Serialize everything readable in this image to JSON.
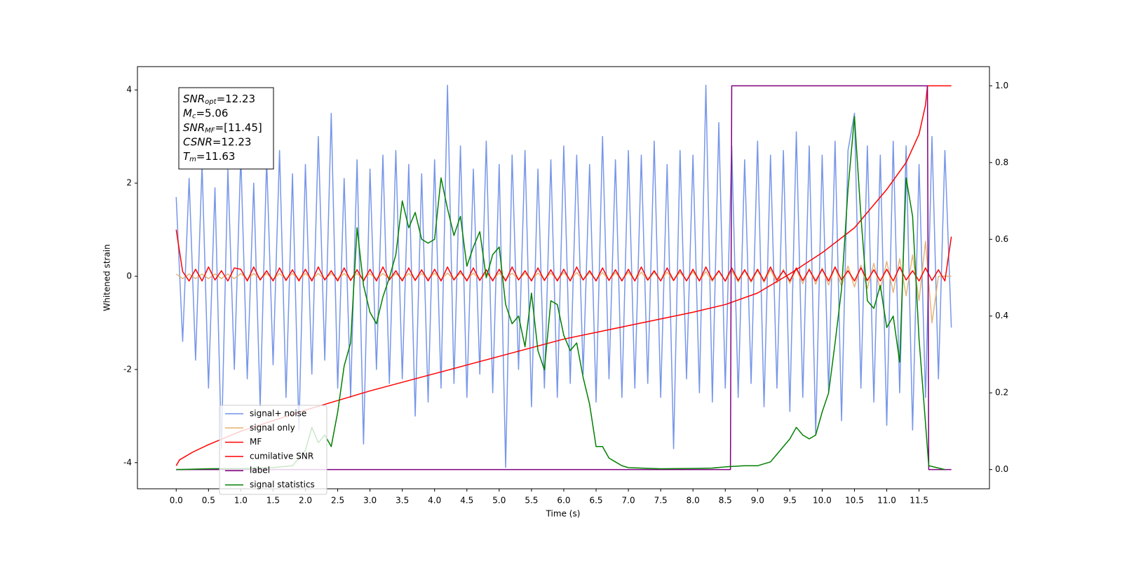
{
  "chart_data": {
    "type": "line",
    "xlabel": "Time (s)",
    "ylabel": "Whitened strain",
    "xlim": [
      -0.6,
      12.59
    ],
    "ylim": [
      -4.56,
      4.5
    ],
    "y2lim": [
      -0.05,
      1.05
    ],
    "xticks": [
      {
        "value": 0,
        "label": "0.0"
      },
      0.5,
      {
        "value": 1,
        "label": "1.0"
      },
      1.5,
      {
        "value": 2,
        "label": "2.0"
      },
      2.5,
      {
        "value": 3,
        "label": "3.0"
      },
      3.5,
      {
        "value": 4,
        "label": "4.0"
      },
      4.5,
      {
        "value": 5,
        "label": "5.0"
      },
      5.5,
      {
        "value": 6,
        "label": "6.0"
      },
      6.5,
      {
        "value": 7,
        "label": "7.0"
      },
      7.5,
      {
        "value": 8,
        "label": "8.0"
      },
      8.5,
      {
        "value": 9,
        "label": "9.0"
      },
      9.5,
      {
        "value": 10,
        "label": "10.0"
      },
      10.5,
      {
        "value": 11,
        "label": "11.0"
      },
      11.5
    ],
    "yticks": [
      -4,
      -2,
      0,
      2,
      4
    ],
    "y2ticks": [
      {
        "value": 0,
        "label": "0.0"
      },
      0.2,
      0.4,
      0.6,
      0.8,
      {
        "value": 1,
        "label": "1.0"
      }
    ],
    "legend": "lower left",
    "annotations": [
      {
        "symbol": "SNR",
        "subscript": "opt",
        "text": "=12.23"
      },
      {
        "symbol": "M",
        "subscript": "c",
        "text": "=5.06"
      },
      {
        "symbol": "SNR",
        "subscript": "MF",
        "text": "=[11.45]"
      },
      {
        "symbol": "CSNR",
        "subscript": "",
        "text": "=12.23"
      },
      {
        "symbol": "T",
        "subscript": "m",
        "text": "=11.63"
      }
    ],
    "x": [
      0,
      0.1,
      0.2,
      0.3,
      0.4,
      0.5,
      0.6,
      0.7,
      0.8,
      0.9,
      1,
      1.1,
      1.2,
      1.3,
      1.4,
      1.5,
      1.6,
      1.7,
      1.8,
      1.9,
      2,
      2.1,
      2.2,
      2.3,
      2.4,
      2.5,
      2.6,
      2.7,
      2.8,
      2.9,
      3,
      3.1,
      3.2,
      3.3,
      3.4,
      3.5,
      3.6,
      3.7,
      3.8,
      3.9,
      4,
      4.1,
      4.2,
      4.3,
      4.4,
      4.5,
      4.6,
      4.7,
      4.8,
      4.9,
      5,
      5.1,
      5.2,
      5.3,
      5.4,
      5.5,
      5.6,
      5.7,
      5.8,
      5.9,
      6,
      6.1,
      6.2,
      6.3,
      6.4,
      6.5,
      6.6,
      6.7,
      6.8,
      6.9,
      7,
      7.1,
      7.2,
      7.3,
      7.4,
      7.5,
      7.6,
      7.7,
      7.8,
      7.9,
      8,
      8.1,
      8.2,
      8.3,
      8.4,
      8.5,
      8.6,
      8.7,
      8.8,
      8.9,
      9,
      9.1,
      9.2,
      9.3,
      9.4,
      9.5,
      9.6,
      9.7,
      9.8,
      9.9,
      10,
      10.1,
      10.2,
      10.3,
      10.4,
      10.5,
      10.6,
      10.7,
      10.8,
      10.9,
      11,
      11.1,
      11.2,
      11.3,
      11.4,
      11.5,
      11.6,
      11.7,
      11.8,
      11.9,
      12
    ],
    "series": [
      {
        "name": "signal+ noise",
        "color": "#7090e8",
        "values": [
          1.7,
          -1.4,
          2.1,
          -1.8,
          2.4,
          -2.4,
          1.9,
          -3.7,
          2.3,
          -2.0,
          2.6,
          -2.2,
          2.0,
          -2.8,
          2.5,
          -1.9,
          2.7,
          -2.6,
          2.2,
          -3.3,
          2.4,
          -2.1,
          3.0,
          -1.8,
          3.5,
          -2.4,
          2.1,
          -2.6,
          2.5,
          -3.6,
          2.3,
          -2.0,
          2.6,
          -2.3,
          2.7,
          -2.2,
          2.4,
          -3.0,
          2.2,
          -2.7,
          2.5,
          -2.4,
          4.1,
          -2.3,
          2.8,
          -2.6,
          2.3,
          -2.1,
          2.9,
          -2.5,
          2.4,
          -4.1,
          2.6,
          -2.0,
          2.7,
          -2.8,
          2.3,
          -2.4,
          2.5,
          -2.6,
          2.8,
          -2.3,
          2.6,
          -2.1,
          2.4,
          -2.7,
          3.0,
          -2.2,
          2.5,
          -2.6,
          2.7,
          -2.4,
          2.6,
          -2.3,
          2.9,
          -2.6,
          2.4,
          -3.7,
          2.7,
          -2.2,
          2.6,
          -2.5,
          4.1,
          -2.7,
          3.3,
          -2.4,
          2.8,
          -2.6,
          2.5,
          -2.3,
          2.9,
          -2.8,
          2.6,
          -2.4,
          2.7,
          -2.9,
          3.1,
          -2.6,
          2.8,
          -3.4,
          2.6,
          -2.5,
          2.9,
          -3.1,
          2.7,
          3.5,
          -2.4,
          2.8,
          -2.7,
          2.6,
          -3.2,
          2.9,
          -2.5,
          2.8,
          -3.3,
          2.4,
          -2.6,
          3.0,
          -2.2,
          2.7,
          -1.1
        ]
      },
      {
        "name": "signal only",
        "color": "#e3b171",
        "values": [
          0.05,
          -0.05,
          0.05,
          -0.05,
          0.05,
          -0.05,
          0.05,
          -0.05,
          0.05,
          -0.05,
          0.06,
          -0.06,
          0.06,
          -0.06,
          0.06,
          -0.06,
          0.06,
          -0.06,
          0.06,
          -0.06,
          0.06,
          -0.06,
          0.06,
          -0.06,
          0.06,
          -0.06,
          0.06,
          -0.06,
          0.06,
          -0.06,
          0.06,
          -0.06,
          0.06,
          -0.06,
          0.06,
          -0.06,
          0.06,
          -0.06,
          0.06,
          -0.06,
          0.07,
          -0.07,
          0.07,
          -0.07,
          0.07,
          -0.07,
          0.07,
          -0.07,
          0.07,
          -0.07,
          0.07,
          -0.07,
          0.07,
          -0.07,
          0.07,
          -0.07,
          0.07,
          -0.07,
          0.07,
          -0.07,
          0.08,
          -0.08,
          0.08,
          -0.08,
          0.08,
          -0.08,
          0.08,
          -0.08,
          0.08,
          -0.08,
          0.09,
          -0.09,
          0.09,
          -0.09,
          0.09,
          -0.09,
          0.09,
          -0.09,
          0.09,
          -0.09,
          0.1,
          -0.1,
          0.1,
          -0.11,
          0.11,
          -0.11,
          0.12,
          -0.12,
          0.12,
          -0.13,
          0.13,
          -0.13,
          0.14,
          -0.14,
          0.15,
          -0.15,
          0.16,
          -0.16,
          0.17,
          -0.17,
          0.18,
          -0.19,
          0.2,
          -0.21,
          0.22,
          -0.23,
          0.24,
          -0.26,
          0.28,
          -0.3,
          0.32,
          -0.35,
          0.38,
          -0.42,
          0.46,
          -0.52,
          0.75,
          -1.0,
          0.0,
          0.0,
          0.0
        ]
      },
      {
        "name": "MF",
        "color": "#ff0000",
        "values": [
          1.0,
          0.1,
          -0.1,
          0.15,
          -0.1,
          0.2,
          -0.08,
          0.12,
          -0.1,
          0.18,
          0.15,
          -0.1,
          0.2,
          -0.08,
          0.12,
          -0.1,
          0.18,
          -0.09,
          0.14,
          -0.1,
          0.15,
          -0.1,
          0.2,
          -0.08,
          0.12,
          -0.1,
          0.18,
          -0.09,
          0.14,
          -0.1,
          0.15,
          -0.1,
          0.2,
          -0.08,
          0.12,
          -0.1,
          0.18,
          -0.09,
          0.14,
          -0.1,
          0.15,
          -0.1,
          0.2,
          -0.08,
          0.12,
          -0.1,
          0.18,
          -0.09,
          0.14,
          -0.1,
          0.15,
          -0.1,
          0.2,
          -0.08,
          0.12,
          -0.1,
          0.18,
          -0.09,
          0.14,
          -0.1,
          0.15,
          -0.1,
          0.2,
          -0.08,
          0.12,
          -0.1,
          0.18,
          -0.09,
          0.14,
          -0.1,
          0.15,
          -0.1,
          0.2,
          -0.08,
          0.12,
          -0.1,
          0.18,
          -0.09,
          0.14,
          -0.1,
          0.15,
          -0.1,
          0.2,
          -0.08,
          0.12,
          -0.1,
          0.18,
          -0.09,
          0.14,
          -0.1,
          0.15,
          -0.1,
          0.2,
          -0.08,
          0.12,
          -0.1,
          0.18,
          -0.09,
          0.14,
          -0.1,
          0.15,
          -0.1,
          0.2,
          -0.08,
          0.12,
          -0.1,
          0.18,
          -0.09,
          0.14,
          -0.1,
          0.15,
          -0.1,
          0.2,
          -0.08,
          0.12,
          -0.1,
          0.18,
          -0.09,
          0.14,
          -0.1,
          0.85
        ]
      },
      {
        "name": "cumilative SNR",
        "color": "#ff0000",
        "axis": "y2",
        "x": [
          0,
          0.05,
          0.25,
          0.5,
          1,
          2,
          3,
          4,
          5,
          6,
          7,
          8,
          8.5,
          9,
          9.5,
          10,
          10.5,
          11,
          11.3,
          11.5,
          11.6,
          11.63,
          12.0
        ],
        "values": [
          0.01,
          0.025,
          0.045,
          0.065,
          0.1,
          0.155,
          0.205,
          0.25,
          0.295,
          0.34,
          0.375,
          0.41,
          0.43,
          0.46,
          0.51,
          0.565,
          0.63,
          0.73,
          0.8,
          0.874,
          0.95,
          1.0,
          1.0
        ]
      },
      {
        "name": "label",
        "color": "#800080",
        "axis": "y2",
        "x": [
          0,
          8.58,
          8.6,
          11.63,
          11.65,
          12.0
        ],
        "values": [
          0,
          0,
          1,
          1,
          0,
          0
        ]
      },
      {
        "name": "signal statistics",
        "color": "#008000",
        "axis": "y2",
        "x": [
          0,
          0.5,
          1,
          1.5,
          1.8,
          1.9,
          2,
          2.1,
          2.2,
          2.3,
          2.4,
          2.5,
          2.6,
          2.7,
          2.8,
          2.9,
          3,
          3.1,
          3.2,
          3.3,
          3.4,
          3.5,
          3.6,
          3.7,
          3.8,
          3.9,
          4,
          4.1,
          4.2,
          4.3,
          4.4,
          4.5,
          4.6,
          4.7,
          4.8,
          4.9,
          5,
          5.1,
          5.2,
          5.3,
          5.4,
          5.5,
          5.6,
          5.7,
          5.8,
          5.9,
          6,
          6.1,
          6.2,
          6.3,
          6.4,
          6.5,
          6.6,
          6.7,
          6.8,
          6.9,
          7,
          7.5,
          8,
          8.3,
          8.5,
          8.8,
          9,
          9.2,
          9.3,
          9.5,
          9.6,
          9.7,
          9.8,
          9.9,
          10,
          10.1,
          10.2,
          10.3,
          10.4,
          10.5,
          10.6,
          10.7,
          10.8,
          10.9,
          11,
          11.1,
          11.2,
          11.3,
          11.4,
          11.5,
          11.6,
          11.65,
          11.9
        ],
        "values": [
          0.0,
          0.002,
          0.003,
          0.005,
          0.01,
          0.03,
          0.05,
          0.11,
          0.07,
          0.09,
          0.06,
          0.15,
          0.27,
          0.33,
          0.63,
          0.48,
          0.41,
          0.38,
          0.45,
          0.5,
          0.56,
          0.7,
          0.63,
          0.67,
          0.6,
          0.59,
          0.6,
          0.76,
          0.68,
          0.61,
          0.66,
          0.53,
          0.58,
          0.62,
          0.5,
          0.56,
          0.58,
          0.43,
          0.38,
          0.4,
          0.32,
          0.46,
          0.31,
          0.26,
          0.44,
          0.43,
          0.35,
          0.31,
          0.33,
          0.24,
          0.17,
          0.06,
          0.06,
          0.03,
          0.02,
          0.01,
          0.005,
          0.002,
          0.003,
          0.004,
          0.007,
          0.01,
          0.01,
          0.02,
          0.04,
          0.08,
          0.11,
          0.09,
          0.08,
          0.09,
          0.15,
          0.2,
          0.33,
          0.47,
          0.73,
          0.92,
          0.66,
          0.44,
          0.42,
          0.48,
          0.37,
          0.4,
          0.28,
          0.76,
          0.66,
          0.34,
          0.12,
          0.01,
          0.0
        ]
      }
    ]
  }
}
